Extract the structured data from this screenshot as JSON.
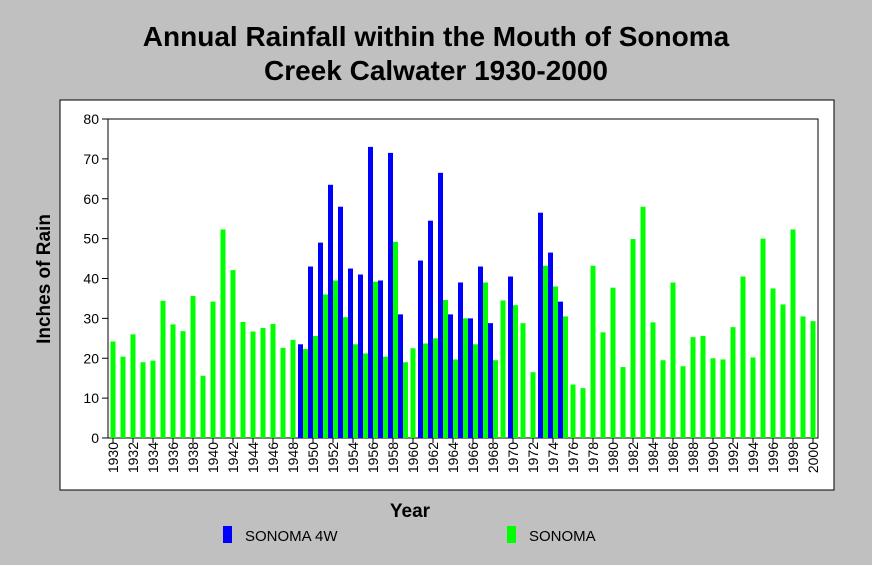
{
  "chart_data": {
    "type": "bar",
    "title_line1": "Annual Rainfall within the Mouth of Sonoma",
    "title_line2": "Creek Calwater 1930-2000",
    "xlabel": "Year",
    "ylabel": "Inches of Rain",
    "ylim": [
      0,
      80
    ],
    "yticks": [
      0,
      10,
      20,
      30,
      40,
      50,
      60,
      70,
      80
    ],
    "xticks": [
      1930,
      1932,
      1934,
      1936,
      1938,
      1940,
      1942,
      1944,
      1946,
      1948,
      1950,
      1952,
      1954,
      1956,
      1958,
      1960,
      1962,
      1964,
      1966,
      1968,
      1970,
      1972,
      1974,
      1976,
      1978,
      1980,
      1982,
      1984,
      1986,
      1988,
      1990,
      1992,
      1994,
      1996,
      1998,
      2000
    ],
    "x": [
      1930,
      1931,
      1932,
      1933,
      1934,
      1935,
      1936,
      1937,
      1938,
      1939,
      1940,
      1941,
      1942,
      1943,
      1944,
      1945,
      1946,
      1947,
      1948,
      1949,
      1950,
      1951,
      1952,
      1953,
      1954,
      1955,
      1956,
      1957,
      1958,
      1959,
      1960,
      1961,
      1962,
      1963,
      1964,
      1965,
      1966,
      1967,
      1968,
      1969,
      1970,
      1971,
      1972,
      1973,
      1974,
      1975,
      1976,
      1977,
      1978,
      1979,
      1980,
      1981,
      1982,
      1983,
      1984,
      1985,
      1986,
      1987,
      1988,
      1989,
      1990,
      1991,
      1992,
      1993,
      1994,
      1995,
      1996,
      1997,
      1998,
      1999,
      2000
    ],
    "grid": false,
    "legend_position": "bottom",
    "series": [
      {
        "name": "SONOMA 4W",
        "color": "#0000ff",
        "values": [
          null,
          null,
          null,
          null,
          null,
          null,
          null,
          null,
          null,
          null,
          null,
          null,
          null,
          null,
          null,
          null,
          null,
          null,
          null,
          23.5,
          43,
          49,
          63.5,
          58,
          42.5,
          41,
          73,
          39.5,
          71.5,
          31,
          null,
          44.5,
          54.5,
          66.5,
          31,
          39,
          30,
          43,
          28.8,
          null,
          40.5,
          null,
          null,
          56.5,
          46.5,
          34.2,
          null,
          null,
          null,
          null,
          null,
          null,
          null,
          null,
          null,
          null,
          null,
          null,
          null,
          null,
          null,
          null,
          null,
          null,
          null,
          null,
          null,
          null,
          null,
          null,
          null
        ]
      },
      {
        "name": "SONOMA",
        "color": "#00ff00",
        "values": [
          24.2,
          20.4,
          26,
          19,
          19.4,
          34.4,
          28.5,
          26.8,
          35.6,
          15.6,
          34.2,
          52.3,
          42.1,
          29.1,
          26.7,
          27.6,
          28.6,
          22.6,
          24.6,
          22.3,
          25.6,
          36,
          39.5,
          30.3,
          23.5,
          21.2,
          39.2,
          20.4,
          49.2,
          19,
          22.5,
          23.7,
          25,
          34.6,
          19.7,
          30,
          23.5,
          39,
          19.5,
          34.5,
          33.3,
          28.8,
          16.5,
          43.2,
          38,
          30.5,
          13.4,
          12.5,
          43.2,
          26.5,
          37.7,
          17.8,
          49.9,
          58,
          29,
          19.5,
          39,
          18,
          25.3,
          25.6,
          20,
          19.7,
          27.8,
          40.5,
          20.2,
          50,
          37.5,
          33.5,
          52.3,
          30.5,
          29.3
        ]
      }
    ]
  }
}
